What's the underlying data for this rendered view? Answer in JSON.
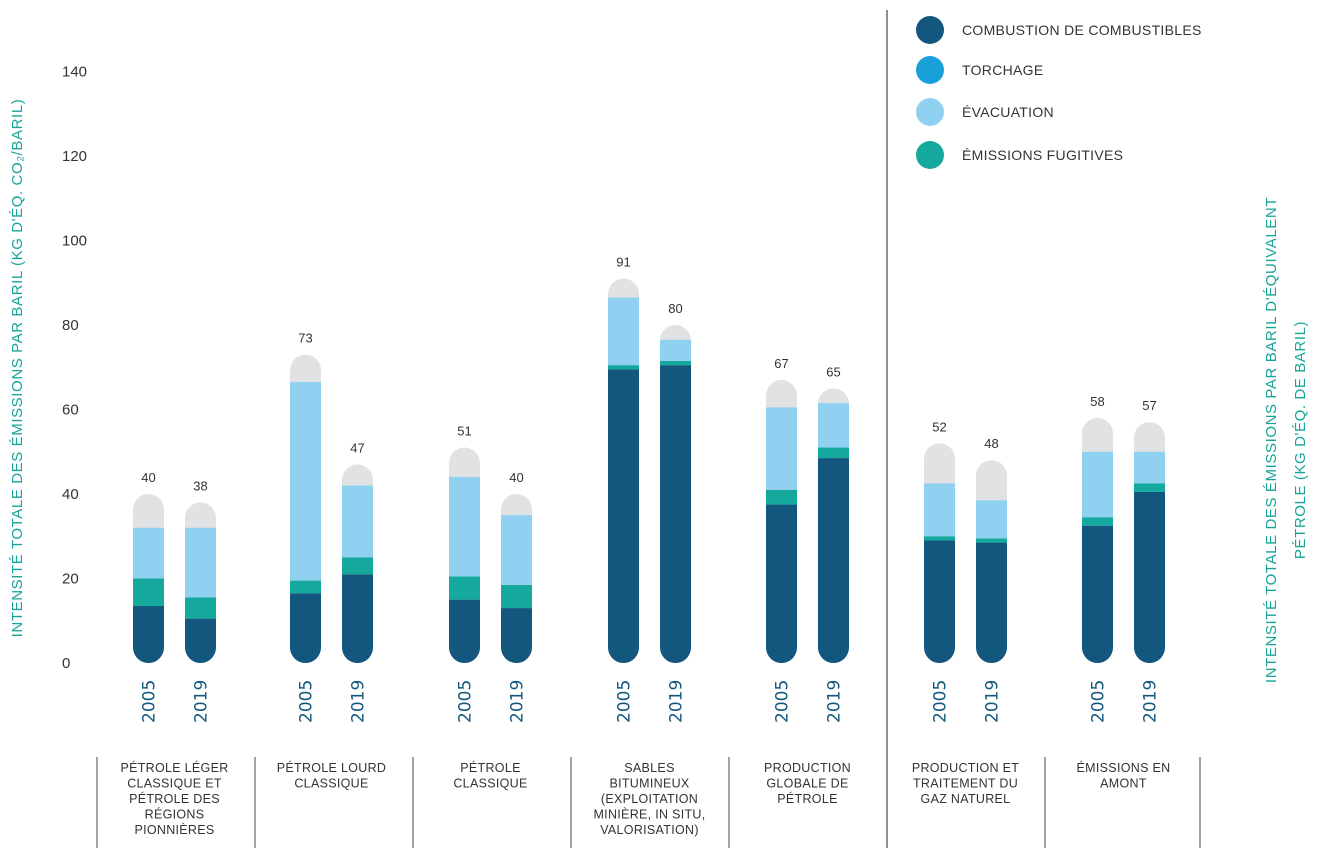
{
  "chart_data": {
    "type": "bar",
    "stacked": true,
    "y_left_label": "INTENSITÉ TOTALE DES ÉMISSIONS PAR BARIL (KG D'ÉQ. CO₂/BARIL)",
    "y_right_label_lines": [
      "INTENSITÉ TOTALE DES ÉMISSIONS PAR BARIL D'ÉQUIVALENT",
      "PÉTROLE (KG D'ÉQ. DE BARIL)"
    ],
    "ylim": [
      0,
      140
    ],
    "yticks": [
      0,
      20,
      40,
      60,
      80,
      100,
      120,
      140
    ],
    "grid": false,
    "legend_position": "top-right",
    "series": [
      {
        "name": "COMBUSTION DE COMBUSTIBLES",
        "color": "#13577f"
      },
      {
        "name": "TORCHAGE",
        "color": "#19a0d8"
      },
      {
        "name": "ÉVACUATION",
        "color": "#90d1f1"
      },
      {
        "name": "ÉMISSIONS FUGITIVES",
        "color": "#14a99c"
      }
    ],
    "other_color": "#e1e2e3",
    "groups": [
      {
        "label_lines": [
          "PÉTROLE LÉGER",
          "CLASSIQUE ET",
          "PÉTROLE DES",
          "RÉGIONS",
          "PIONNIÈRES"
        ],
        "bars": [
          {
            "year": "2005",
            "total": 40,
            "values": [
              13.5,
              0.0,
              12.0,
              6.5
            ]
          },
          {
            "year": "2019",
            "total": 38,
            "values": [
              10.5,
              0.0,
              16.5,
              5.0
            ]
          }
        ]
      },
      {
        "label_lines": [
          "PÉTROLE LOURD",
          "CLASSIQUE"
        ],
        "bars": [
          {
            "year": "2005",
            "total": 73,
            "values": [
              16.5,
              0.0,
              47.0,
              3.0
            ]
          },
          {
            "year": "2019",
            "total": 47,
            "values": [
              21.0,
              0.0,
              17.0,
              4.0
            ]
          }
        ]
      },
      {
        "label_lines": [
          "PÉTROLE",
          "CLASSIQUE"
        ],
        "bars": [
          {
            "year": "2005",
            "total": 51,
            "values": [
              15.0,
              0.0,
              23.5,
              5.5
            ]
          },
          {
            "year": "2019",
            "total": 40,
            "values": [
              13.0,
              0.0,
              16.5,
              5.5
            ]
          }
        ]
      },
      {
        "label_lines": [
          "SABLES",
          "BITUMINEUX",
          "(EXPLOITATION",
          "MINIÈRE, IN SITU,",
          "VALORISATION)"
        ],
        "bars": [
          {
            "year": "2005",
            "total": 91,
            "values": [
              69.5,
              0.0,
              16.0,
              1.0
            ]
          },
          {
            "year": "2019",
            "total": 80,
            "values": [
              70.5,
              0.0,
              5.0,
              1.0
            ]
          }
        ]
      },
      {
        "label_lines": [
          "PRODUCTION",
          "GLOBALE DE",
          "PÉTROLE"
        ],
        "bars": [
          {
            "year": "2005",
            "total": 67,
            "values": [
              37.5,
              0.0,
              19.5,
              3.5
            ]
          },
          {
            "year": "2019",
            "total": 65,
            "values": [
              48.5,
              0.0,
              10.5,
              2.5
            ]
          }
        ]
      },
      {
        "label_lines": [
          "PRODUCTION ET",
          "TRAITEMENT DU",
          "GAZ NATUREL"
        ],
        "bars": [
          {
            "year": "2005",
            "total": 52,
            "values": [
              29.0,
              0.0,
              12.5,
              1.0
            ]
          },
          {
            "year": "2019",
            "total": 48,
            "values": [
              28.5,
              0.0,
              9.0,
              1.0
            ]
          }
        ]
      },
      {
        "label_lines": [
          "ÉMISSIONS EN",
          "AMONT"
        ],
        "bars": [
          {
            "year": "2005",
            "total": 58,
            "values": [
              32.5,
              0.0,
              15.5,
              2.0
            ]
          },
          {
            "year": "2019",
            "total": 57,
            "values": [
              40.5,
              0.0,
              7.5,
              2.0
            ]
          }
        ]
      }
    ]
  }
}
